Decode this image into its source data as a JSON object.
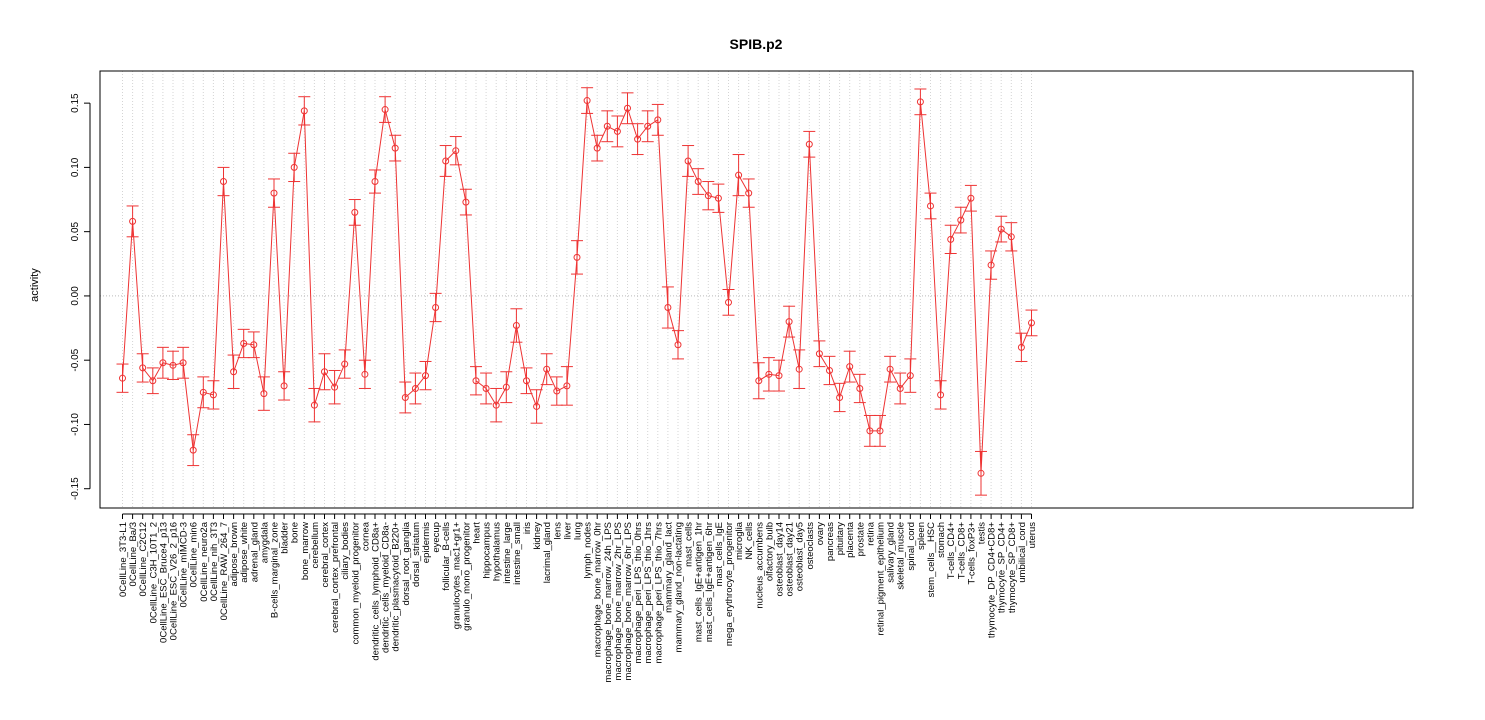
{
  "chart_data": {
    "type": "line",
    "title": "SPIB.p2",
    "xlabel": "",
    "ylabel": "activity",
    "ylim": [
      -0.165,
      0.175
    ],
    "yticks": [
      -0.15,
      -0.1,
      -0.05,
      0.0,
      0.05,
      0.1,
      0.15
    ],
    "ytick_labels": [
      "-0.15",
      "-0.10",
      "-0.05",
      "0.00",
      "0.05",
      "0.10",
      "0.15"
    ],
    "reference_line": 0.0,
    "grid": "vertical dotted at each category",
    "series_color": "#ee3333",
    "categories": [
      "0CellLine_3T3-L1",
      "0CellLine_Ba/3",
      "0CellLine_C2C12",
      "0CellLine_C3H_10T1_2",
      "0CellLine_ESC_Bruce4_p13",
      "0CellLine_ESC_V26_2_p16",
      "0CellLine_mIMCD-3",
      "0CellLine_min6",
      "0CellLine_neuro2a",
      "0CellLine_nih_3T3",
      "0CellLine_RAW_264_7",
      "adipose_brown",
      "adipose_white",
      "adrenal_gland",
      "amygdala",
      "B-cells_marginal_zone",
      "bladder",
      "bone",
      "bone_marrow",
      "cerebellum",
      "cerebral_cortex",
      "cerebral_cortex_prefrontal",
      "ciliary_bodies",
      "common_myeloid_progenitor",
      "cornea",
      "dendritic_cells_lymphoid_CD8a+",
      "dendritic_cells_myeloid_CD8a-",
      "dendritic_plasmacytoid_B220+",
      "dorsal_root_ganglia",
      "dorsal_striatum",
      "epidermis",
      "eyecup",
      "follicular_B-cells",
      "granulocytes_mac1+gr1+",
      "granulo_mono_progenitor",
      "heart",
      "hippocampus",
      "hypothalamus",
      "intestine_large",
      "intestine_small",
      "iris",
      "kidney",
      "lacrimal_gland",
      "lens",
      "liver",
      "lung",
      "lymph_nodes",
      "macrophage_bone_marrow_0hr",
      "macrophage_bone_marrow_24h_LPS",
      "macrophage_bone_marrow_2hr_LPS",
      "macrophage_bone_marrow_6hr_LPS",
      "macrophage_peri_LPS_thio_0hrs",
      "macrophage_peri_LPS_thio_1hrs",
      "macrophage_peri_LPS_thio_7hrs",
      "mammary_gland_lact",
      "mammary_gland_non-lactating",
      "mast_cells",
      "mast_cells_IgE+antigen_1hr",
      "mast_cells_IgE+antigen_6hr",
      "mast_cells_IgE",
      "mega_erythrocyte_progenitor",
      "microglia",
      "NK_cells",
      "nucleus_accumbens",
      "olfactory_bulb",
      "osteoblast_day14",
      "osteoblast_day21",
      "osteoblast_day5",
      "osteoclasts",
      "ovary",
      "pancreas",
      "pituitary",
      "placenta",
      "prostate",
      "retina",
      "retinal_pigment_epithelium",
      "salivary_gland",
      "skeletal_muscle",
      "spinal_cord",
      "spleen",
      "stem_cells__HSC",
      "stomach",
      "T-cells_CD4+",
      "T-cells_CD8+",
      "T-cells_foxP3+",
      "testis",
      "thymocyte_DP_CD4+CD8+",
      "thymocyte_SP_CD4+",
      "thymocyte_SP_CD8+",
      "umbilical_cord",
      "uterus"
    ],
    "values": [
      -0.064,
      0.058,
      -0.056,
      -0.066,
      -0.052,
      -0.054,
      -0.052,
      -0.12,
      -0.075,
      -0.077,
      0.089,
      -0.059,
      -0.037,
      -0.038,
      -0.076,
      0.08,
      -0.07,
      0.1,
      0.144,
      -0.085,
      -0.059,
      -0.071,
      -0.053,
      0.065,
      -0.061,
      0.089,
      0.145,
      0.115,
      -0.079,
      -0.072,
      -0.062,
      -0.009,
      0.105,
      0.113,
      0.073,
      -0.066,
      -0.072,
      -0.085,
      -0.071,
      -0.023,
      -0.066,
      -0.086,
      -0.057,
      -0.074,
      -0.07,
      0.03,
      0.152,
      0.115,
      0.132,
      0.128,
      0.146,
      0.122,
      0.132,
      0.137,
      -0.009,
      -0.038,
      0.105,
      0.089,
      0.078,
      0.076,
      -0.005,
      0.094,
      0.08,
      -0.066,
      -0.061,
      -0.062,
      -0.02,
      -0.057,
      0.118,
      -0.045,
      -0.058,
      -0.079,
      -0.055,
      -0.072,
      -0.105,
      -0.105,
      -0.057,
      -0.072,
      -0.062,
      0.151,
      0.07,
      -0.077,
      0.044,
      0.059,
      0.076,
      -0.138,
      0.024,
      0.052,
      0.046,
      -0.04,
      -0.021
    ],
    "errors": [
      0.011,
      0.012,
      0.011,
      0.01,
      0.012,
      0.011,
      0.012,
      0.012,
      0.012,
      0.011,
      0.011,
      0.013,
      0.011,
      0.01,
      0.013,
      0.011,
      0.011,
      0.011,
      0.011,
      0.013,
      0.014,
      0.013,
      0.011,
      0.01,
      0.011,
      0.009,
      0.01,
      0.01,
      0.012,
      0.012,
      0.011,
      0.011,
      0.012,
      0.011,
      0.01,
      0.011,
      0.012,
      0.013,
      0.012,
      0.013,
      0.01,
      0.013,
      0.012,
      0.011,
      0.015,
      0.013,
      0.01,
      0.01,
      0.012,
      0.012,
      0.012,
      0.012,
      0.012,
      0.012,
      0.016,
      0.011,
      0.012,
      0.01,
      0.011,
      0.011,
      0.01,
      0.016,
      0.011,
      0.014,
      0.013,
      0.012,
      0.012,
      0.015,
      0.01,
      0.01,
      0.011,
      0.011,
      0.012,
      0.011,
      0.012,
      0.012,
      0.01,
      0.012,
      0.013,
      0.01,
      0.01,
      0.011,
      0.011,
      0.01,
      0.01,
      0.017,
      0.011,
      0.01,
      0.011,
      0.011,
      0.01
    ]
  }
}
